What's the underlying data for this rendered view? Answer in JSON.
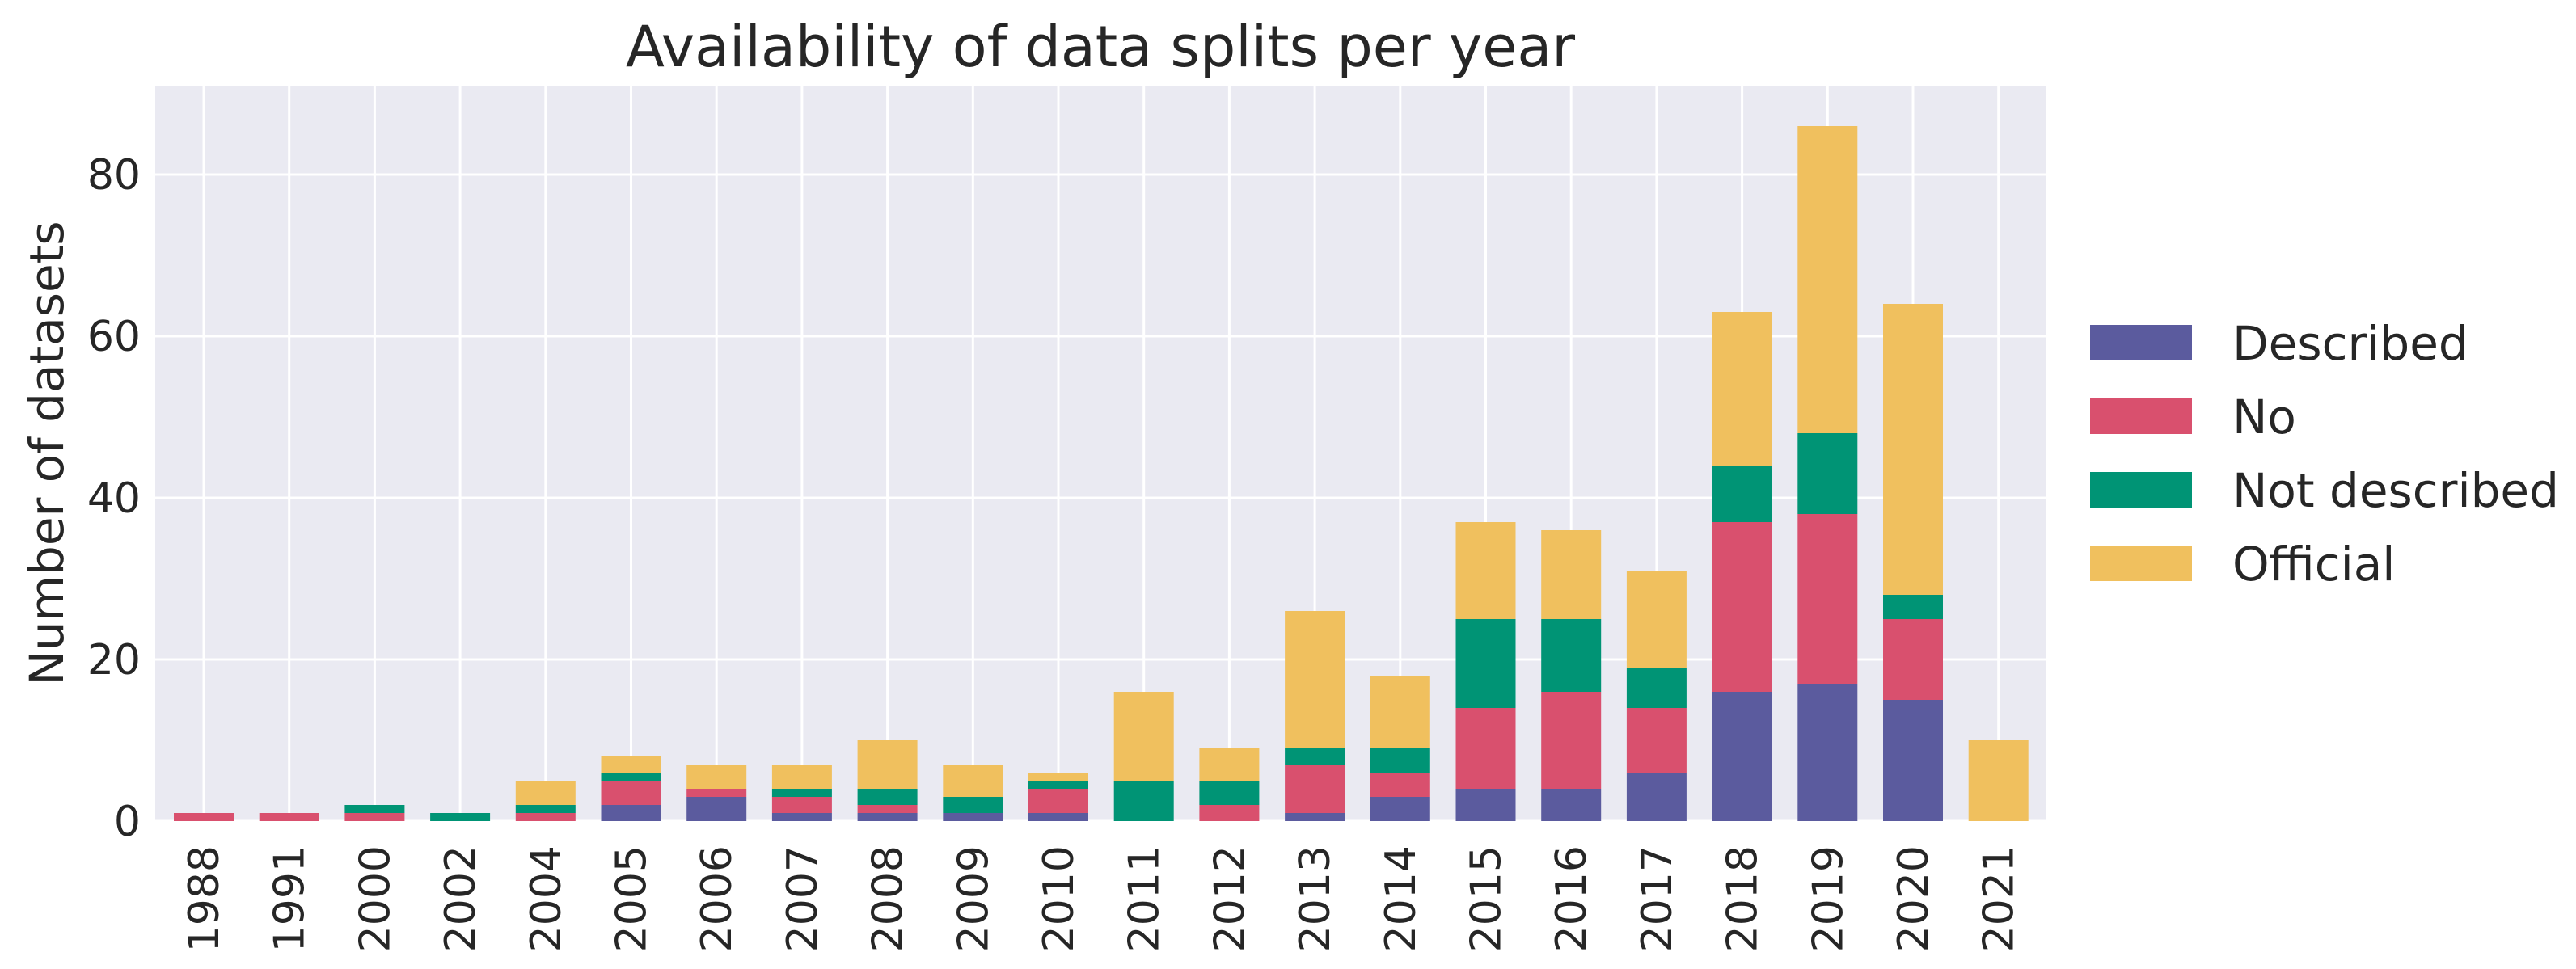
{
  "chart_data": {
    "type": "bar",
    "stacked": true,
    "title": "Availability of data splits per year",
    "xlabel": "",
    "ylabel": "Number of datasets",
    "ylim": [
      0,
      91
    ],
    "yticks": [
      0,
      20,
      40,
      60,
      80
    ],
    "grid": true,
    "legend_position": "right",
    "categories": [
      "1988",
      "1991",
      "2000",
      "2002",
      "2004",
      "2005",
      "2006",
      "2007",
      "2008",
      "2009",
      "2010",
      "2011",
      "2012",
      "2013",
      "2014",
      "2015",
      "2016",
      "2017",
      "2018",
      "2019",
      "2020",
      "2021"
    ],
    "series": [
      {
        "name": "Described",
        "color": "#5b5b9e",
        "values": [
          0,
          0,
          0,
          0,
          0,
          2,
          3,
          1,
          1,
          1,
          1,
          0,
          0,
          1,
          3,
          4,
          4,
          6,
          16,
          17,
          15,
          0
        ]
      },
      {
        "name": "No",
        "color": "#d9506e",
        "values": [
          1,
          1,
          1,
          0,
          1,
          3,
          1,
          2,
          1,
          0,
          3,
          0,
          2,
          6,
          3,
          10,
          12,
          8,
          21,
          21,
          10,
          0
        ]
      },
      {
        "name": "Not described",
        "color": "#009475",
        "values": [
          0,
          0,
          1,
          1,
          1,
          1,
          0,
          1,
          2,
          2,
          1,
          5,
          3,
          2,
          3,
          11,
          9,
          5,
          7,
          10,
          3,
          0
        ]
      },
      {
        "name": "Official",
        "color": "#f0c05e",
        "values": [
          0,
          0,
          0,
          0,
          3,
          2,
          3,
          3,
          6,
          4,
          1,
          11,
          4,
          17,
          9,
          12,
          11,
          12,
          19,
          38,
          36,
          10
        ]
      }
    ]
  }
}
